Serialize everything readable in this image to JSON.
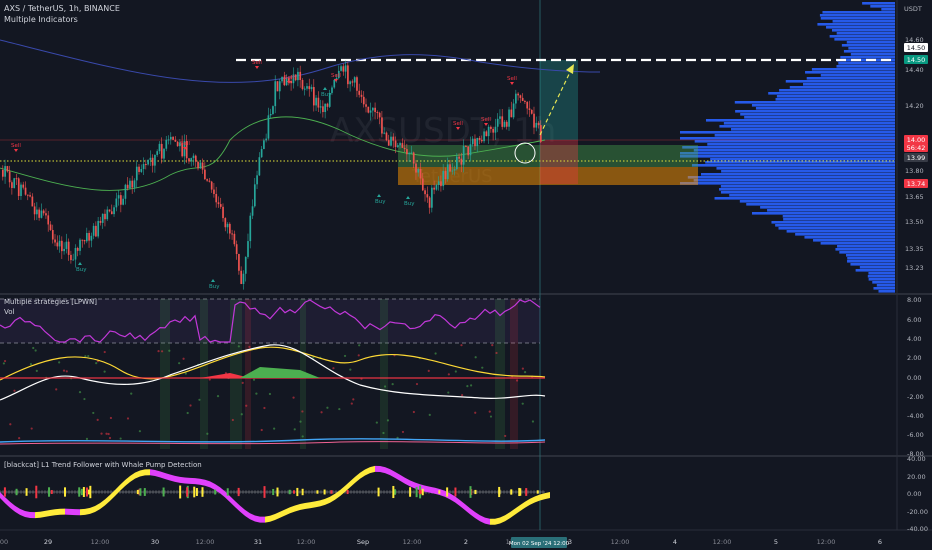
{
  "header": {
    "symbol_line": "AXS / TetherUS, 1h, BINANCE",
    "indicator_name": "Multiple Indicators",
    "watermark_symbol": "AXSUSDT, 1h",
    "watermark_name": "TetherUS"
  },
  "main_axis": {
    "currency": "USDT",
    "ticks": [
      "14.60",
      "14.40",
      "14.20",
      "14.00",
      "13.80",
      "13.65",
      "13.50",
      "13.35",
      "13.23"
    ]
  },
  "price_tags": [
    {
      "label": "14.50",
      "bg": "#ffffff",
      "fg": "#131722"
    },
    {
      "label": "14.50",
      "bg": "#089981",
      "fg": "#ffffff"
    },
    {
      "label": "14.00",
      "bg": "#f23645",
      "fg": "#ffffff"
    },
    {
      "label": "56:42",
      "bg": "#f23645",
      "fg": "#ffffff"
    },
    {
      "label": "13.99",
      "bg": "#363a45",
      "fg": "#ffffff"
    },
    {
      "label": "13.74",
      "bg": "#f23645",
      "fg": "#ffffff"
    }
  ],
  "signals": {
    "sell": "Sell",
    "buy": "Buy"
  },
  "pane2": {
    "label": "Multiple strategies [LPWN]",
    "sublabel": "Vol",
    "ticks": [
      "8.00",
      "6.00",
      "4.00",
      "2.00",
      "0.00",
      "-2.00",
      "-4.00",
      "-6.00",
      "-8.00"
    ]
  },
  "pane3": {
    "label": "[blackcat] L1 Trend Follower with Whale Pump Detection",
    "ticks": [
      "40.00",
      "20.00",
      "0.00",
      "-20.00",
      "-40.00"
    ]
  },
  "time_axis": {
    "labels": [
      "00",
      "29",
      "12:00",
      "30",
      "12:00",
      "31",
      "12:00",
      "Sep",
      "12:00",
      "2",
      "12:00",
      "3",
      "12:00",
      "4",
      "12:00",
      "5",
      "12:00",
      "6"
    ],
    "current_time": "Mon 02 Sep '24  12:00"
  },
  "colors": {
    "background": "#131722",
    "bull": "#26a69a",
    "bear": "#ef5350",
    "volume_profile": "#2962ff",
    "rsi": "#c238d9"
  }
}
